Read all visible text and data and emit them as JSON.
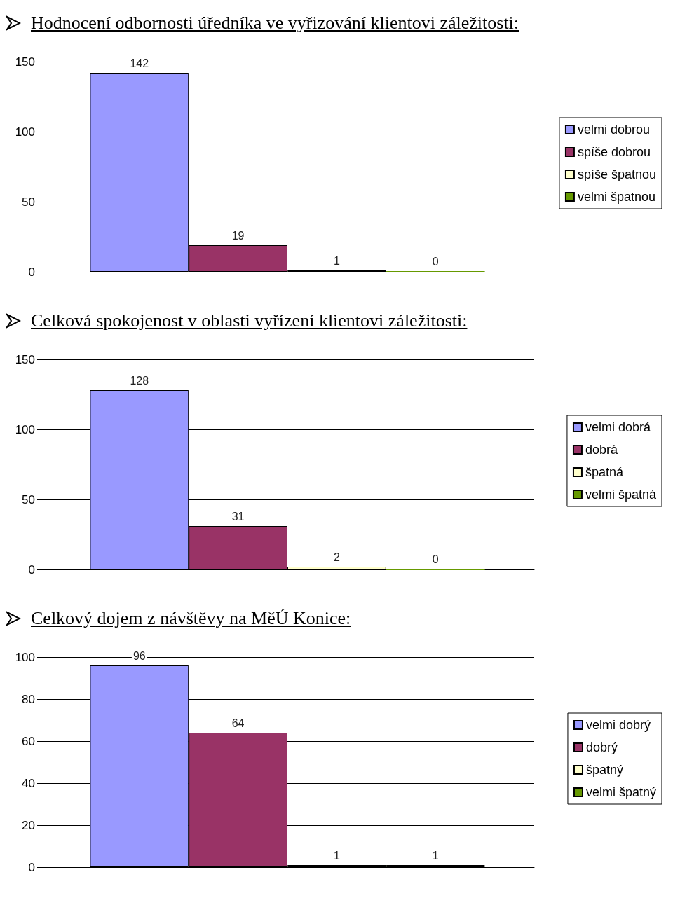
{
  "chart_data": [
    {
      "type": "bar",
      "title": "Hodnocení odbornosti úředníka ve vyřizování klientovi záležitosti:",
      "categories": [
        null
      ],
      "series": [
        {
          "name": "velmi dobrou",
          "color": "#9999ff",
          "values": [
            142
          ]
        },
        {
          "name": "spíše dobrou",
          "color": "#993366",
          "values": [
            19
          ]
        },
        {
          "name": "spíše špatnou",
          "color": "#ffffcc",
          "values": [
            1
          ]
        },
        {
          "name": "velmi špatnou",
          "color": "#669900",
          "values": [
            0
          ]
        }
      ],
      "ylim": [
        0,
        150
      ],
      "yticks": [
        0,
        50,
        100,
        150
      ],
      "grid": "y",
      "legend": "right",
      "data_labels": true
    },
    {
      "type": "bar",
      "title": "Celková spokojenost v oblasti vyřízení klientovi záležitosti:",
      "categories": [
        null
      ],
      "series": [
        {
          "name": "velmi dobrá",
          "color": "#9999ff",
          "values": [
            128
          ]
        },
        {
          "name": "dobrá",
          "color": "#993366",
          "values": [
            31
          ]
        },
        {
          "name": "špatná",
          "color": "#ffffcc",
          "values": [
            2
          ]
        },
        {
          "name": "velmi špatná",
          "color": "#669900",
          "values": [
            0
          ]
        }
      ],
      "ylim": [
        0,
        150
      ],
      "yticks": [
        0,
        50,
        100,
        150
      ],
      "grid": "y",
      "legend": "right",
      "data_labels": true
    },
    {
      "type": "bar",
      "title": "Celkový dojem z návštěvy na MěÚ Konice:",
      "categories": [
        null
      ],
      "series": [
        {
          "name": "velmi dobrý",
          "color": "#9999ff",
          "values": [
            96
          ]
        },
        {
          "name": "dobrý",
          "color": "#993366",
          "values": [
            64
          ]
        },
        {
          "name": "špatný",
          "color": "#ffffcc",
          "values": [
            1
          ]
        },
        {
          "name": "velmi špatný",
          "color": "#669900",
          "values": [
            1
          ]
        }
      ],
      "ylim": [
        0,
        100
      ],
      "yticks": [
        0,
        20,
        40,
        60,
        80,
        100
      ],
      "grid": "y",
      "legend": "right",
      "data_labels": true
    }
  ]
}
